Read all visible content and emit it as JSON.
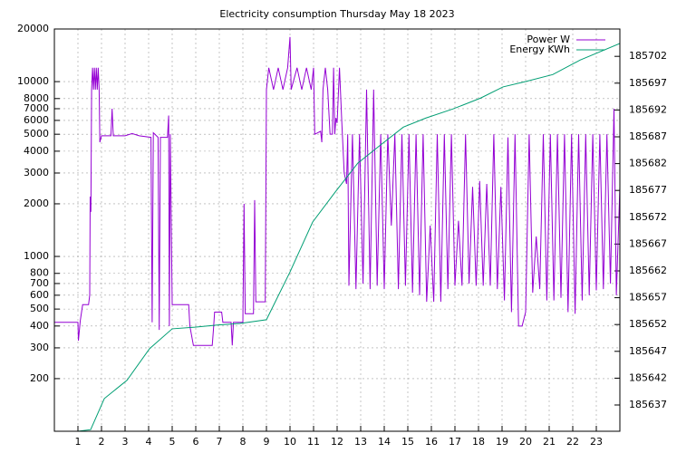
{
  "chart_data": {
    "type": "line",
    "title": "Electricity consumption Thursday May 18 2023",
    "xlim": [
      0,
      24
    ],
    "xticks": [
      1,
      2,
      3,
      4,
      5,
      6,
      7,
      8,
      9,
      10,
      11,
      12,
      13,
      14,
      15,
      16,
      17,
      18,
      19,
      20,
      21,
      22,
      23
    ],
    "ylim": [
      100,
      20000
    ],
    "ylog": true,
    "yticks": [
      200,
      300,
      400,
      500,
      600,
      700,
      800,
      1000,
      2000,
      3000,
      4000,
      5000,
      6000,
      7000,
      8000,
      10000,
      20000
    ],
    "y2lim": [
      185632.1,
      185707.1
    ],
    "y2ticks": [
      185637,
      185642,
      185647,
      185652,
      185657,
      185662,
      185667,
      185672,
      185677,
      185682,
      185687,
      185692,
      185697,
      185702
    ],
    "grid": true,
    "legend": "top-right",
    "series": [
      {
        "name": "Power W",
        "color": "#9400d3",
        "x": [
          0,
          1.0,
          1.02,
          1.1,
          1.2,
          1.45,
          1.5,
          1.52,
          1.55,
          1.58,
          1.62,
          1.66,
          1.7,
          1.74,
          1.78,
          1.82,
          1.86,
          1.9,
          1.93,
          2.0,
          2.4,
          2.45,
          2.5,
          3.0,
          3.3,
          3.6,
          4.1,
          4.15,
          4.2,
          4.4,
          4.45,
          4.5,
          4.8,
          4.85,
          4.88,
          4.92,
          5.0,
          5.7,
          5.75,
          5.9,
          6.7,
          6.75,
          6.8,
          7.1,
          7.15,
          7.5,
          7.55,
          7.6,
          8.0,
          8.05,
          8.1,
          8.45,
          8.5,
          8.55,
          8.95,
          9.0,
          9.1,
          9.3,
          9.5,
          9.7,
          9.9,
          10.0,
          10.05,
          10.3,
          10.5,
          10.7,
          10.9,
          11.0,
          11.05,
          11.3,
          11.35,
          11.4,
          11.5,
          11.6,
          11.7,
          11.8,
          11.85,
          11.9,
          11.95,
          12.0,
          12.1,
          12.2,
          12.3,
          12.4,
          12.45,
          12.5,
          12.65,
          12.8,
          12.95,
          13.1,
          13.25,
          13.4,
          13.55,
          13.7,
          13.85,
          14.0,
          14.15,
          14.3,
          14.45,
          14.6,
          14.75,
          14.9,
          15.05,
          15.2,
          15.35,
          15.5,
          15.65,
          15.8,
          15.95,
          16.1,
          16.25,
          16.4,
          16.55,
          16.7,
          16.85,
          17.0,
          17.15,
          17.3,
          17.45,
          17.6,
          17.75,
          17.9,
          18.05,
          18.2,
          18.35,
          18.5,
          18.65,
          18.8,
          18.95,
          19.1,
          19.25,
          19.4,
          19.55,
          19.7,
          19.85,
          20.0,
          20.15,
          20.3,
          20.45,
          20.6,
          20.75,
          20.9,
          21.05,
          21.2,
          21.35,
          21.5,
          21.65,
          21.8,
          21.95,
          22.1,
          22.25,
          22.4,
          22.55,
          22.7,
          22.85,
          23.0,
          23.15,
          23.3,
          23.45,
          23.6,
          23.75,
          23.85,
          24.0
        ],
        "values": [
          420,
          420,
          330,
          430,
          530,
          530,
          600,
          2200,
          1800,
          9000,
          12000,
          9000,
          12000,
          9000,
          12000,
          9000,
          12000,
          9000,
          4500,
          4900,
          4900,
          7000,
          4900,
          4900,
          5050,
          4900,
          4800,
          420,
          5100,
          4800,
          380,
          4800,
          4800,
          6400,
          400,
          5000,
          530,
          530,
          400,
          310,
          310,
          380,
          480,
          480,
          420,
          420,
          310,
          420,
          420,
          2000,
          470,
          470,
          2100,
          550,
          550,
          9000,
          12000,
          9000,
          12000,
          9000,
          12000,
          18000,
          9000,
          12000,
          9000,
          12000,
          9000,
          12000,
          5000,
          5200,
          4500,
          9000,
          12000,
          9000,
          5000,
          5000,
          12000,
          5000,
          6200,
          5800,
          12000,
          5800,
          3000,
          2600,
          5000,
          680,
          5000,
          650,
          5000,
          700,
          9000,
          650,
          9000,
          680,
          5000,
          650,
          5000,
          1500,
          5000,
          650,
          5000,
          680,
          5000,
          620,
          5000,
          600,
          5000,
          550,
          1500,
          550,
          5000,
          550,
          5000,
          650,
          5000,
          680,
          1600,
          680,
          5000,
          700,
          2500,
          680,
          2700,
          680,
          2600,
          680,
          5000,
          650,
          2500,
          560,
          4800,
          480,
          5000,
          400,
          400,
          480,
          5000,
          620,
          1300,
          650,
          5000,
          560,
          5000,
          560,
          5000,
          580,
          5000,
          480,
          5000,
          470,
          5000,
          560,
          5000,
          600,
          5000,
          640,
          5000,
          650,
          5000,
          700,
          7000,
          600,
          2500
        ]
      },
      {
        "name": "Energy KWh",
        "color": "#009e73",
        "axis": "y2",
        "x": [
          1.0,
          1.54,
          2.12,
          3.08,
          4.04,
          5.0,
          5.96,
          6.92,
          7.88,
          9.0,
          10.0,
          10.96,
          11.92,
          12.88,
          13.85,
          14.81,
          15.77,
          16.92,
          18.08,
          19.04,
          20.0,
          21.15,
          22.31,
          24.0
        ],
        "values": [
          185632.1,
          185632.4,
          185638.2,
          185641.6,
          185647.5,
          185651.2,
          185651.5,
          185651.9,
          185652.2,
          185652.9,
          185661.8,
          185671.1,
          185676.7,
          185682.1,
          185685.5,
          185688.8,
          185690.5,
          185692.2,
          185694.2,
          185696.3,
          185697.3,
          185698.6,
          185701.3,
          185704.4
        ]
      }
    ]
  }
}
